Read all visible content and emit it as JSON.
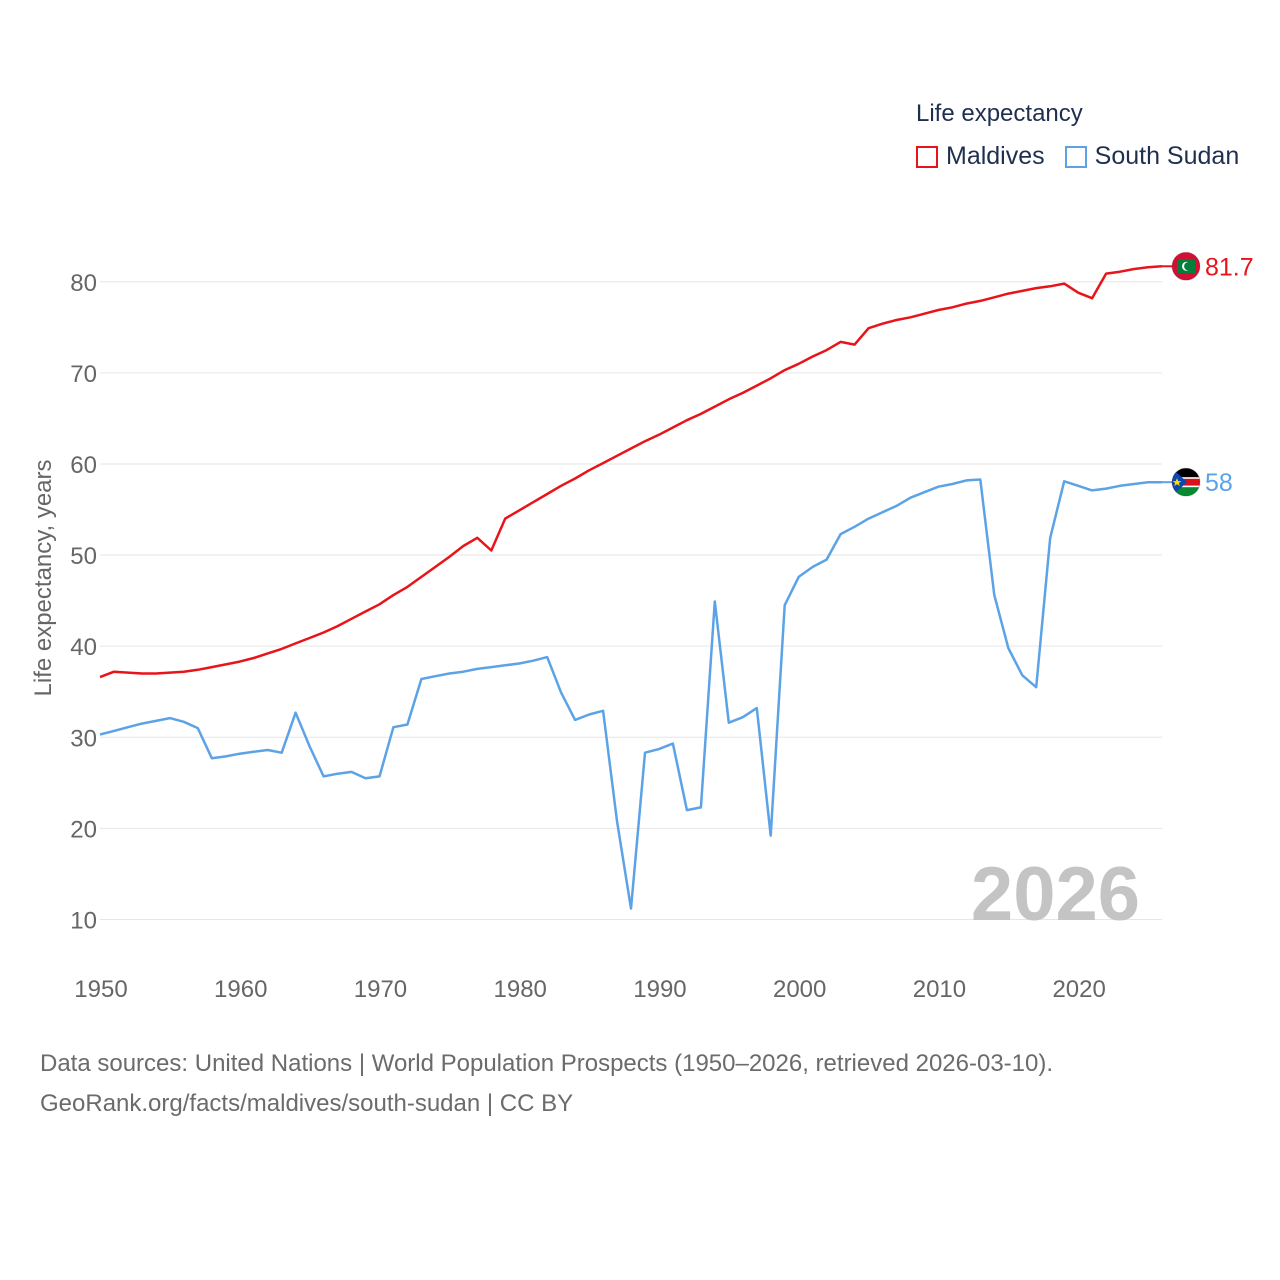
{
  "legend": {
    "title": "Life expectancy",
    "items": [
      {
        "name": "Maldives",
        "color": "#e8141a"
      },
      {
        "name": "South Sudan",
        "color": "#5ba3e6"
      }
    ]
  },
  "year_label": "2026",
  "sources": {
    "line1": "Data sources: United Nations | World Population Prospects (1950–2026, retrieved 2026-03-10).",
    "line2": "GeoRank.org/facts/maldives/south-sudan | CC BY"
  },
  "chart_data": {
    "type": "line",
    "title": "",
    "xlabel": "",
    "ylabel": "Life expectancy, years",
    "xlim": [
      1950,
      2026
    ],
    "ylim": [
      5,
      87
    ],
    "x_ticks": [
      1950,
      1960,
      1970,
      1980,
      1990,
      2000,
      2010,
      2020
    ],
    "y_ticks": [
      10,
      20,
      30,
      40,
      50,
      60,
      70,
      80
    ],
    "grid": true,
    "legend_position": "top-right",
    "x": [
      1950,
      1951,
      1952,
      1953,
      1954,
      1955,
      1956,
      1957,
      1958,
      1959,
      1960,
      1961,
      1962,
      1963,
      1964,
      1965,
      1966,
      1967,
      1968,
      1969,
      1970,
      1971,
      1972,
      1973,
      1974,
      1975,
      1976,
      1977,
      1978,
      1979,
      1980,
      1981,
      1982,
      1983,
      1984,
      1985,
      1986,
      1987,
      1988,
      1989,
      1990,
      1991,
      1992,
      1993,
      1994,
      1995,
      1996,
      1997,
      1998,
      1999,
      2000,
      2001,
      2002,
      2003,
      2004,
      2005,
      2006,
      2007,
      2008,
      2009,
      2010,
      2011,
      2012,
      2013,
      2014,
      2015,
      2016,
      2017,
      2018,
      2019,
      2020,
      2021,
      2022,
      2023,
      2024,
      2025,
      2026
    ],
    "series": [
      {
        "name": "Maldives",
        "color": "#e8141a",
        "end_label": "81.7",
        "values": [
          36.6,
          37.2,
          37.1,
          37.0,
          37.0,
          37.1,
          37.2,
          37.4,
          37.7,
          38.0,
          38.3,
          38.7,
          39.2,
          39.7,
          40.3,
          40.9,
          41.5,
          42.2,
          43.0,
          43.8,
          44.6,
          45.6,
          46.5,
          47.6,
          48.7,
          49.8,
          51.0,
          51.9,
          50.5,
          54.0,
          54.9,
          55.8,
          56.7,
          57.6,
          58.4,
          59.3,
          60.1,
          60.9,
          61.7,
          62.5,
          63.2,
          64.0,
          64.8,
          65.5,
          66.3,
          67.1,
          67.8,
          68.6,
          69.4,
          70.3,
          71.0,
          71.8,
          72.5,
          73.4,
          73.1,
          74.9,
          75.4,
          75.8,
          76.1,
          76.5,
          76.9,
          77.2,
          77.6,
          77.9,
          78.3,
          78.7,
          79.0,
          79.3,
          79.5,
          79.8,
          78.8,
          78.2,
          80.9,
          81.1,
          81.4,
          81.6,
          81.7
        ]
      },
      {
        "name": "South Sudan",
        "color": "#5ba3e6",
        "end_label": "58",
        "values": [
          30.3,
          30.7,
          31.1,
          31.5,
          31.8,
          32.1,
          31.7,
          31.0,
          27.7,
          27.9,
          28.2,
          28.4,
          28.6,
          28.3,
          32.7,
          29.0,
          25.7,
          26.0,
          26.2,
          25.5,
          25.7,
          31.1,
          31.4,
          36.4,
          36.7,
          37.0,
          37.2,
          37.5,
          37.7,
          37.9,
          38.1,
          38.4,
          38.8,
          34.9,
          31.9,
          32.5,
          32.9,
          20.8,
          11.2,
          28.3,
          28.7,
          29.3,
          22.0,
          22.3,
          44.9,
          31.6,
          32.2,
          33.2,
          19.2,
          44.5,
          47.6,
          48.7,
          49.5,
          52.3,
          53.1,
          54.0,
          54.7,
          55.4,
          56.3,
          56.9,
          57.5,
          57.8,
          58.2,
          58.3,
          45.6,
          39.8,
          36.8,
          35.5,
          51.9,
          58.1,
          57.6,
          57.1,
          57.3,
          57.6,
          57.8,
          58.0,
          58.0
        ]
      }
    ]
  }
}
